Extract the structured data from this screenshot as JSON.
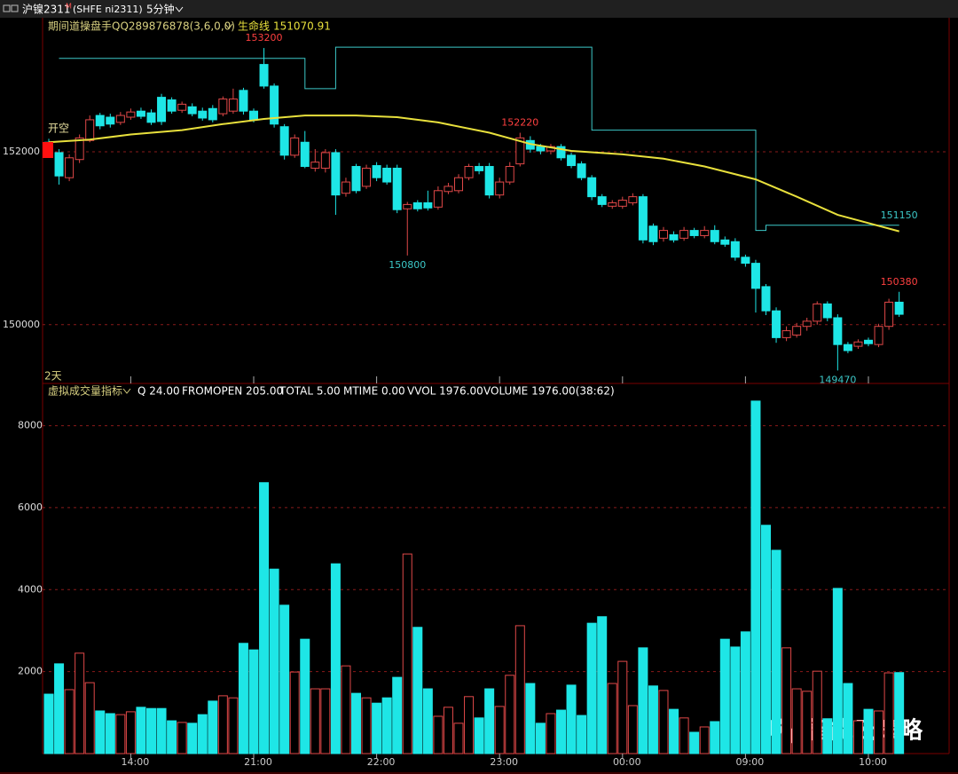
{
  "header": {
    "symbol": "沪镍2311",
    "flag": "M",
    "code": "(SHFE ni2311)",
    "period": "5分钟"
  },
  "watermark": "智能云策略",
  "chart_data": [
    {
      "type": "candlestick",
      "title": "期间道操盘手QQ289876878(3,6,0,0)",
      "lifeline": {
        "name": "生命线",
        "color": "#e8e03c",
        "current": 151070.91,
        "x": [
          0,
          4,
          8,
          13,
          17,
          21,
          25,
          30,
          34,
          38,
          43,
          47,
          51,
          56,
          60,
          64,
          69,
          73,
          77,
          83
        ],
        "values": [
          152110,
          152140,
          152200,
          152250,
          152320,
          152380,
          152420,
          152420,
          152400,
          152340,
          152220,
          152090,
          152010,
          151970,
          151920,
          151830,
          151680,
          151480,
          151270,
          151080
        ]
      },
      "stop_line": {
        "color": "#3cc8c8",
        "x": [
          1,
          25,
          25,
          28,
          28,
          53,
          53,
          69,
          69,
          70,
          70,
          83
        ],
        "values": [
          153080,
          153080,
          152730,
          152730,
          153210,
          153210,
          152250,
          152250,
          151090,
          151090,
          151150,
          151150
        ]
      },
      "open": [
        152110,
        151990,
        151700,
        151910,
        152130,
        152420,
        152400,
        152340,
        152400,
        152470,
        152450,
        152630,
        152600,
        152480,
        152520,
        152470,
        152500,
        152440,
        152470,
        152710,
        152470,
        153010,
        152760,
        152290,
        151960,
        152110,
        151810,
        151810,
        151990,
        151520,
        151830,
        151600,
        151840,
        151810,
        151810,
        151340,
        151410,
        151410,
        151360,
        151540,
        151550,
        151700,
        151830,
        151830,
        151500,
        151650,
        151860,
        152130,
        152060,
        152010,
        152060,
        151960,
        151860,
        151700,
        151480,
        151370,
        151370,
        151410,
        151480,
        151140,
        151000,
        151040,
        151000,
        151090,
        151030,
        151090,
        150980,
        150960,
        150780,
        150710,
        150440,
        150160,
        149850,
        149880,
        149980,
        150040,
        150240,
        150080,
        149770,
        149750,
        149820,
        149770,
        149980,
        150260
      ],
      "high": [
        152150,
        152030,
        151970,
        152200,
        152420,
        152450,
        152440,
        152460,
        152500,
        152510,
        152490,
        152670,
        152630,
        152580,
        152560,
        152510,
        152540,
        152640,
        152730,
        152740,
        152500,
        153200,
        152790,
        152320,
        152200,
        152240,
        152030,
        152030,
        152030,
        151700,
        151860,
        151850,
        151880,
        151850,
        151850,
        151420,
        151440,
        151550,
        151600,
        151640,
        151740,
        151860,
        151870,
        151870,
        151700,
        151880,
        152220,
        152180,
        152090,
        152090,
        152090,
        151990,
        151890,
        151730,
        151510,
        151440,
        151480,
        151520,
        151510,
        151170,
        151130,
        151080,
        151130,
        151120,
        151140,
        151150,
        151020,
        151000,
        150810,
        150750,
        150470,
        150200,
        149980,
        150020,
        150080,
        150270,
        150270,
        150120,
        149800,
        149830,
        149850,
        150010,
        150300,
        150380
      ],
      "low": [
        151970,
        151620,
        151660,
        151870,
        152110,
        152260,
        152280,
        152310,
        152370,
        152380,
        152310,
        152310,
        152440,
        152450,
        152410,
        152360,
        152340,
        152410,
        152440,
        152430,
        152340,
        152730,
        152280,
        151910,
        151930,
        151810,
        151770,
        151760,
        151270,
        151480,
        151520,
        151570,
        151660,
        151620,
        151290,
        150800,
        151310,
        151320,
        151330,
        151510,
        151520,
        151670,
        151740,
        151460,
        151460,
        151620,
        151830,
        151990,
        151970,
        151970,
        151900,
        151810,
        151670,
        151440,
        151360,
        151340,
        151340,
        151380,
        150940,
        150920,
        150960,
        150950,
        150970,
        151000,
        151000,
        150930,
        150900,
        150740,
        150670,
        150140,
        150110,
        149790,
        149810,
        149850,
        149930,
        150000,
        150040,
        149470,
        149670,
        149720,
        149750,
        149740,
        149940,
        150090
      ],
      "close": [
        152010,
        151720,
        151930,
        152160,
        152370,
        152300,
        152320,
        152420,
        152460,
        152410,
        152340,
        152350,
        152470,
        152550,
        152440,
        152390,
        152370,
        152610,
        152610,
        152470,
        152370,
        152760,
        152320,
        151960,
        152160,
        151830,
        151880,
        151990,
        151500,
        151650,
        151550,
        151810,
        151700,
        151650,
        151330,
        151390,
        151340,
        151350,
        151550,
        151600,
        151700,
        151830,
        151780,
        151500,
        151650,
        151830,
        152160,
        152030,
        152010,
        152060,
        151930,
        151840,
        151700,
        151480,
        151390,
        151410,
        151440,
        151480,
        150980,
        150960,
        151090,
        150980,
        151090,
        151030,
        151090,
        150960,
        150930,
        150780,
        150710,
        150420,
        150160,
        149850,
        149930,
        149980,
        150040,
        150240,
        150080,
        149770,
        149700,
        149800,
        149780,
        149980,
        150260,
        150120
      ],
      "up_color": "#e04848",
      "down_color": "#1ee6e6",
      "ylim": [
        149320,
        153550
      ],
      "yticks": [
        150000,
        152000
      ],
      "grid": true,
      "annotations": [
        {
          "x": 21,
          "value": 153200,
          "color": "#ff4040",
          "position": "above"
        },
        {
          "x": 46,
          "value": 152220,
          "color": "#ff4040",
          "position": "above"
        },
        {
          "x": 35,
          "value": 150800,
          "color": "#3cc8c8",
          "position": "below"
        },
        {
          "x": 77,
          "value": 149470,
          "color": "#3cc8c8",
          "position": "below"
        },
        {
          "x": 83,
          "value": 150380,
          "color": "#ff4040",
          "position": "above"
        },
        {
          "x": 83,
          "value": 151150,
          "color": "#3cc8c8",
          "position": "above"
        }
      ],
      "markers": [
        {
          "x": 0,
          "label": "开空",
          "color": "#ff1010"
        }
      ],
      "span_label": "2天"
    },
    {
      "type": "bar",
      "title": "虚拟成交量指标",
      "legend_items": [
        "Q 24.00",
        "FROMOPEN 205.00",
        "TOTAL 5.00",
        "MTIME 0.00",
        "VVOL 1976.00",
        "VOLUME 1976.00(38:62)"
      ],
      "categories": [
        null,
        null,
        null,
        null,
        null,
        null,
        null,
        null,
        "14:00",
        null,
        null,
        null,
        null,
        null,
        null,
        null,
        null,
        null,
        null,
        null,
        "21:00",
        null,
        null,
        null,
        null,
        null,
        null,
        null,
        null,
        null,
        null,
        null,
        "22:00",
        null,
        null,
        null,
        null,
        null,
        null,
        null,
        null,
        null,
        null,
        null,
        "23:00",
        null,
        null,
        null,
        null,
        null,
        null,
        null,
        null,
        null,
        null,
        null,
        "00:00",
        null,
        null,
        null,
        null,
        null,
        null,
        null,
        null,
        null,
        null,
        null,
        "09:00",
        null,
        null,
        null,
        null,
        null,
        null,
        null,
        null,
        null,
        null,
        null,
        "10:00",
        null,
        null,
        null
      ],
      "values": [
        1450,
        2190,
        1560,
        2450,
        1730,
        1040,
        975,
        950,
        1020,
        1130,
        1100,
        1100,
        800,
        760,
        740,
        950,
        1280,
        1410,
        1360,
        2690,
        2530,
        6610,
        4500,
        3620,
        1990,
        2790,
        1580,
        1580,
        4630,
        2140,
        1470,
        1360,
        1230,
        1360,
        1860,
        4870,
        3080,
        1580,
        910,
        1130,
        740,
        1390,
        870,
        1580,
        1150,
        1910,
        3120,
        1710,
        740,
        975,
        1060,
        1670,
        930,
        3180,
        3340,
        1710,
        2250,
        1170,
        2580,
        1650,
        1540,
        1080,
        870,
        520,
        650,
        780,
        2790,
        2600,
        2970,
        8600,
        5570,
        4960,
        2580,
        1580,
        1520,
        2010,
        850,
        4030,
        1710,
        800,
        1080,
        1040,
        1970,
        1976
      ],
      "ylim": [
        0,
        9030
      ],
      "yticks": [
        2000,
        4000,
        6000,
        8000
      ],
      "grid": true
    }
  ]
}
